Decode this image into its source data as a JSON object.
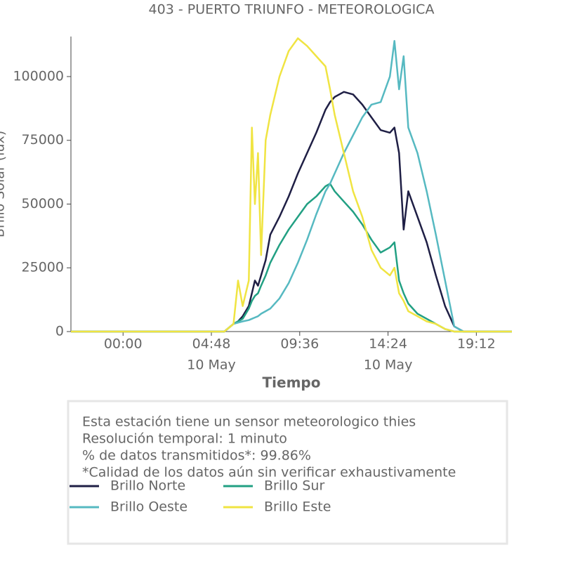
{
  "chart_data": {
    "type": "line",
    "title": "403 - PUERTO TRIUNFO - METEOROLOGICA",
    "x_label": "Tiempo",
    "y_label": "Brillo Solar (lux)",
    "x": [
      "09 May 21:10",
      "10 May 00:00",
      "10 May 05:30",
      "10 May 06:00",
      "10 May 06:15",
      "10 May 06:30",
      "10 May 06:50",
      "10 May 07:00",
      "10 May 07:10",
      "10 May 07:20",
      "10 May 07:30",
      "10 May 07:45",
      "10 May 08:00",
      "10 May 08:30",
      "10 May 09:00",
      "10 May 09:30",
      "10 May 10:00",
      "10 May 10:30",
      "10 May 11:00",
      "10 May 11:15",
      "10 May 11:30",
      "10 May 12:00",
      "10 May 12:30",
      "10 May 13:00",
      "10 May 13:30",
      "10 May 14:00",
      "10 May 14:30",
      "10 May 14:45",
      "10 May 15:00",
      "10 May 15:15",
      "10 May 15:30",
      "10 May 16:00",
      "10 May 16:30",
      "10 May 17:00",
      "10 May 17:30",
      "10 May 18:00",
      "10 May 18:30",
      "10 May 21:08"
    ],
    "series": [
      {
        "name": "Brillo Norte",
        "color": "#1f1f45",
        "values": [
          0,
          0,
          0,
          3000,
          4000,
          6000,
          10000,
          15000,
          20000,
          18000,
          22000,
          28000,
          38000,
          45000,
          53000,
          62000,
          70000,
          78000,
          87000,
          90000,
          92000,
          94000,
          93000,
          89000,
          84000,
          79000,
          78000,
          80000,
          70000,
          40000,
          55000,
          45000,
          35000,
          22000,
          10000,
          2000,
          0,
          0
        ]
      },
      {
        "name": "Brillo Sur",
        "color": "#22a083",
        "values": [
          0,
          0,
          0,
          3000,
          4000,
          5000,
          9000,
          12000,
          14000,
          15000,
          18000,
          22000,
          27000,
          34000,
          40000,
          45000,
          50000,
          53000,
          57000,
          58000,
          55000,
          51000,
          47000,
          42000,
          36000,
          31000,
          33000,
          35000,
          20000,
          15000,
          11000,
          7000,
          5000,
          3000,
          1000,
          0,
          0,
          0
        ]
      },
      {
        "name": "Brillo Oeste",
        "color": "#56b9c1",
        "values": [
          0,
          0,
          0,
          3000,
          3500,
          4000,
          4500,
          5000,
          5500,
          6000,
          7000,
          8000,
          9000,
          13000,
          19000,
          27000,
          36000,
          46000,
          55000,
          58000,
          62000,
          70000,
          77000,
          84000,
          89000,
          90000,
          100000,
          114000,
          95000,
          108000,
          80000,
          70000,
          55000,
          38000,
          20000,
          2000,
          0,
          0
        ]
      },
      {
        "name": "Brillo Este",
        "color": "#f0e442",
        "values": [
          0,
          0,
          0,
          3000,
          20000,
          10000,
          20000,
          80000,
          50000,
          70000,
          30000,
          75000,
          85000,
          100000,
          110000,
          115000,
          112000,
          108000,
          104000,
          95000,
          85000,
          70000,
          55000,
          45000,
          32000,
          25000,
          22000,
          25000,
          15000,
          12000,
          8000,
          6000,
          4000,
          3000,
          1000,
          0,
          0,
          0
        ]
      }
    ],
    "xlim": [
      "09 May 21:10",
      "10 May 21:08"
    ],
    "xticks": [
      {
        "value": "10 May 00:00",
        "label": [
          "00:00"
        ]
      },
      {
        "value": "10 May 04:48",
        "label": [
          "04:48",
          "10 May"
        ]
      },
      {
        "value": "10 May 09:36",
        "label": [
          "09:36"
        ]
      },
      {
        "value": "10 May 14:24",
        "label": [
          "14:24",
          "10 May"
        ]
      },
      {
        "value": "10 May 19:12",
        "label": [
          "19:12"
        ]
      }
    ],
    "ylim": [
      0,
      115700
    ],
    "yticks": [
      0,
      25000,
      50000,
      75000,
      100000
    ],
    "grid": false,
    "annotations": [
      "Esta estación tiene un sensor meteorologico thies",
      "Resolución temporal: 1 minuto",
      "% de datos transmitidos*: 99.86%",
      "*Calidad de los datos aún sin verificar exhaustivamente"
    ]
  }
}
